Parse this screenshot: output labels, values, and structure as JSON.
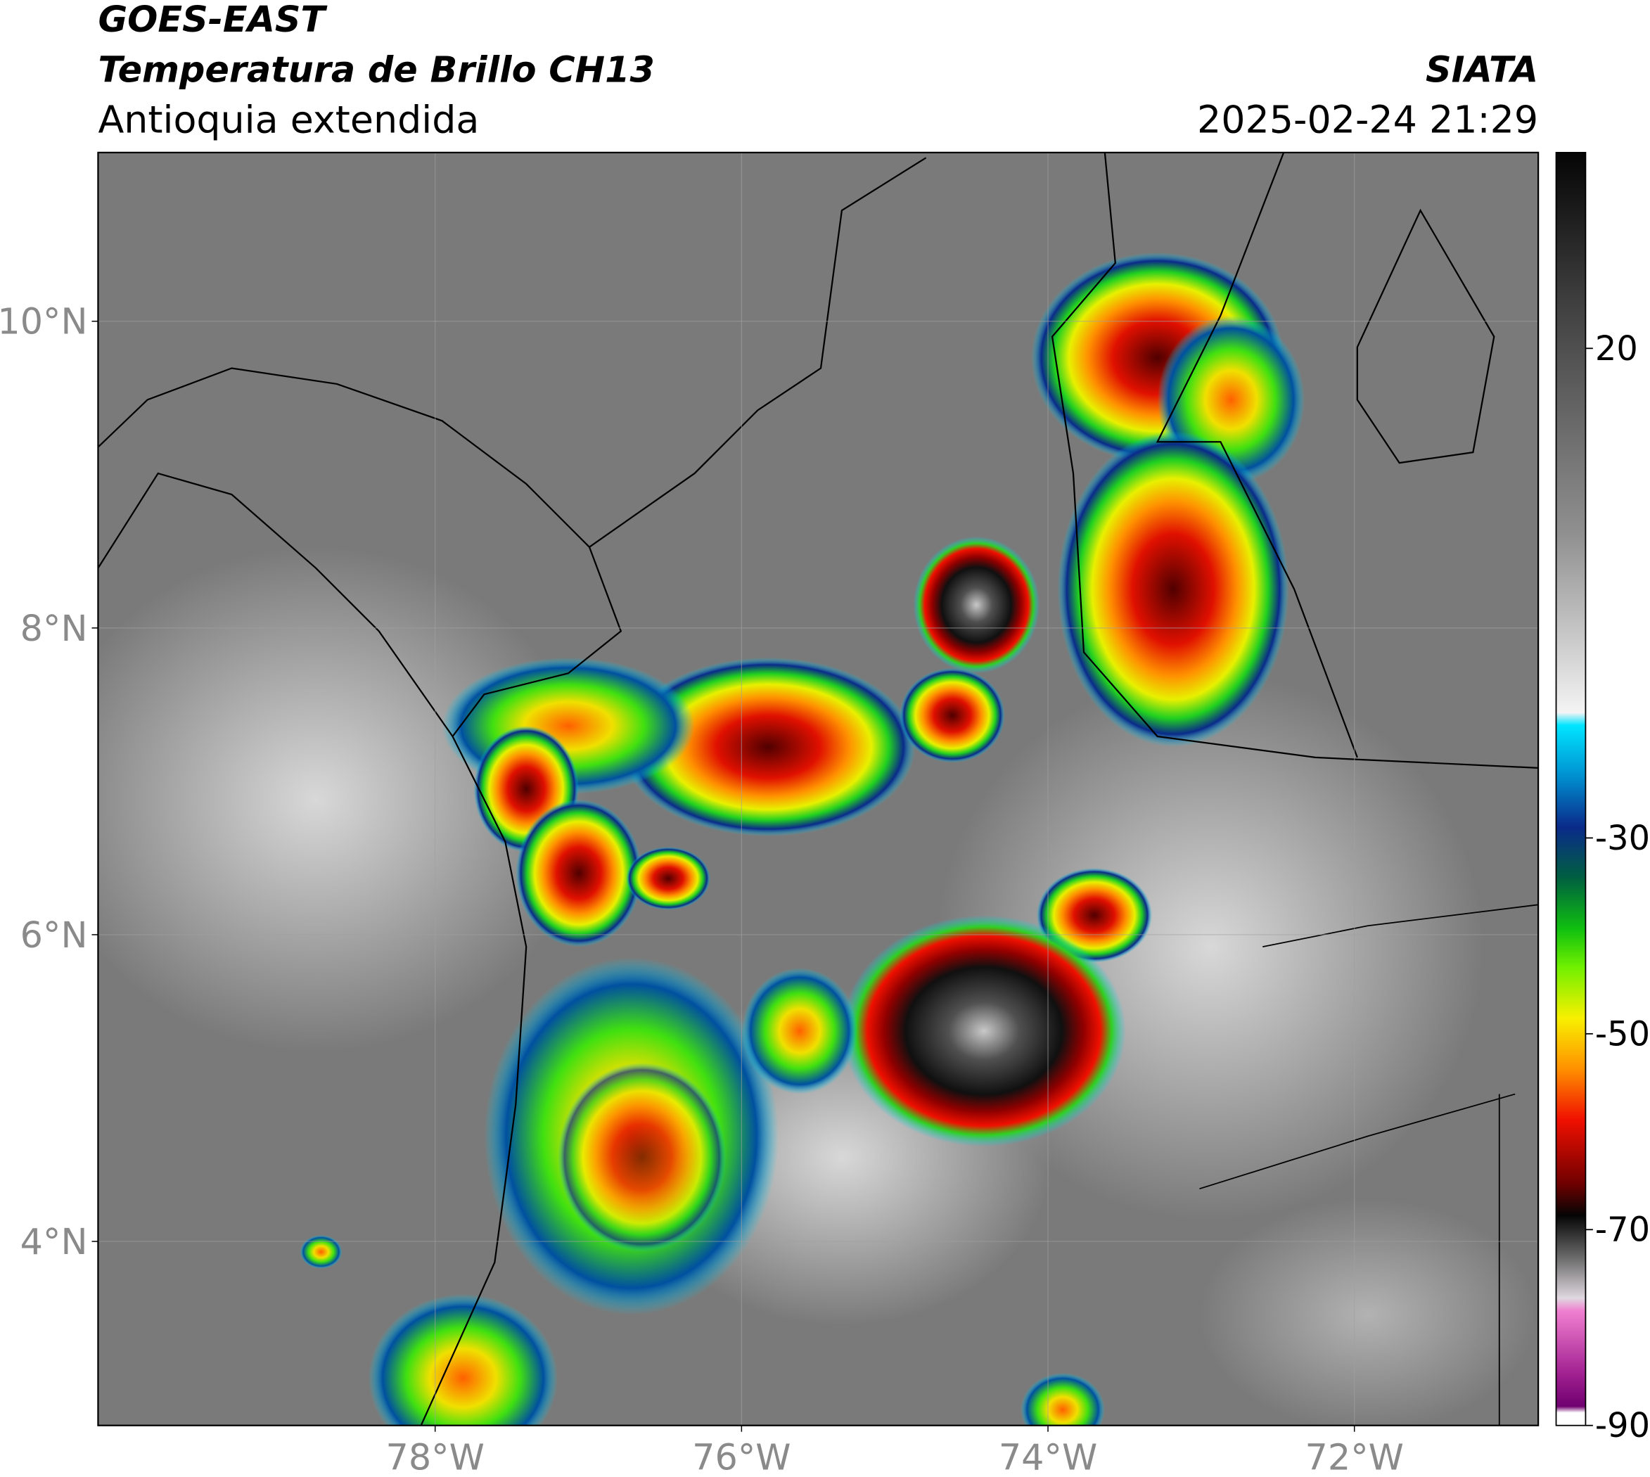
{
  "header": {
    "title_line1": "GOES-EAST",
    "title_line2": "Temperatura de Brillo CH13",
    "subtitle": "Antioquia extendida",
    "source": "SIATA",
    "timestamp": "2025-02-24 21:29"
  },
  "map": {
    "xlim": [
      -80.2,
      -70.8
    ],
    "ylim": [
      2.8,
      11.1
    ],
    "xticks": [
      {
        "value": -78,
        "label": "78°W"
      },
      {
        "value": -76,
        "label": "76°W"
      },
      {
        "value": -74,
        "label": "74°W"
      },
      {
        "value": -72,
        "label": "72°W"
      }
    ],
    "yticks": [
      {
        "value": 4,
        "label": "4°N"
      },
      {
        "value": 6,
        "label": "6°N"
      },
      {
        "value": 8,
        "label": "8°N"
      },
      {
        "value": 10,
        "label": "10°N"
      }
    ],
    "grid": true
  },
  "colorbar": {
    "lim": [
      -90,
      40
    ],
    "ticks": [
      20,
      -30,
      -50,
      -70,
      -90
    ]
  }
}
